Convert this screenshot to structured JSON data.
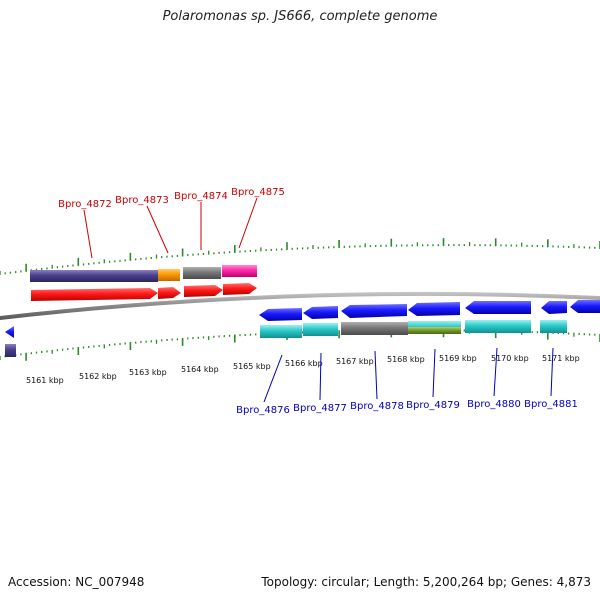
{
  "title": "Polaromonas sp. JS666, complete genome",
  "footer": {
    "accession": "Accession: NC_007948",
    "summary": "Topology: circular; Length: 5,200,264 bp; Genes: 4,873"
  },
  "scale_labels": [
    "5161 kbp",
    "5162 kbp",
    "5163 kbp",
    "5164 kbp",
    "5165 kbp",
    "5166 kbp",
    "5167 kbp",
    "5168 kbp",
    "5169 kbp",
    "5170 kbp",
    "5171 kbp"
  ],
  "top_genes": [
    "Bpro_4872",
    "Bpro_4873",
    "Bpro_4874",
    "Bpro_4875"
  ],
  "bottom_genes": [
    "Bpro_4876",
    "Bpro_4877",
    "Bpro_4878",
    "Bpro_4879",
    "Bpro_4880",
    "Bpro_4881"
  ],
  "colors": {
    "top_label": "#cc0000",
    "bottom_label": "#0000bb",
    "tick": "#2a8a2a",
    "backbone": "#888888",
    "cds_red": "#ff1a1a",
    "cds_blue": "#1a1aff",
    "purple": "#4a3f8a",
    "orange": "#ff9900",
    "gray": "#777777",
    "magenta": "#ff2aa8",
    "cyan": "#2ac8c8",
    "olive": "#7a9a30"
  }
}
